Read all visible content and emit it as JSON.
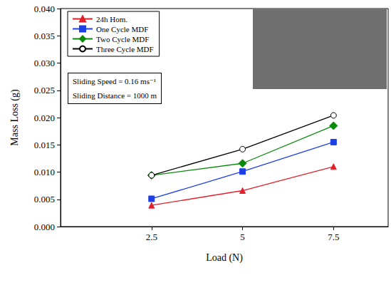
{
  "chart_data": {
    "type": "line",
    "x_label": "Load (N)",
    "y_label": "Mass Loss (g)",
    "x": [
      2.5,
      5,
      7.5
    ],
    "xlim": [
      0,
      9
    ],
    "xticks": [
      2.5,
      5,
      7.5
    ],
    "ylim": [
      0,
      0.04
    ],
    "yticks": [
      {
        "value": 0,
        "label": "0.000"
      },
      {
        "value": 0.005,
        "label": "0.005"
      },
      {
        "value": 0.01,
        "label": "0.010"
      },
      {
        "value": 0.015,
        "label": "0.015"
      },
      {
        "value": 0.02,
        "label": "0.020"
      },
      {
        "value": 0.025,
        "label": "0.025"
      },
      {
        "value": 0.03,
        "label": "0.030"
      },
      {
        "value": 0.035,
        "label": "0.035"
      },
      {
        "value": 0.04,
        "label": "0.040"
      }
    ],
    "grid": false,
    "legend": "upper left",
    "annotations": [
      "Sliding Speed = 0.16 ms⁻¹",
      "Sliding Distance = 1000 m"
    ],
    "series": [
      {
        "name": "24h Hom.",
        "color": "#e3202a",
        "marker": "triangle",
        "values": [
          0.0039,
          0.0066,
          0.011
        ]
      },
      {
        "name": "One Cycle MDF",
        "color": "#1f3fe6",
        "marker": "square",
        "values": [
          0.0051,
          0.0101,
          0.0155
        ]
      },
      {
        "name": "Two Cycle MDF",
        "color": "#0a8a0a",
        "marker": "diamond",
        "values": [
          0.0094,
          0.0116,
          0.0185
        ]
      },
      {
        "name": "Three Cycle MDF",
        "color": "#000000",
        "marker": "circle-open",
        "values": [
          0.0094,
          0.0142,
          0.0204
        ]
      }
    ]
  }
}
